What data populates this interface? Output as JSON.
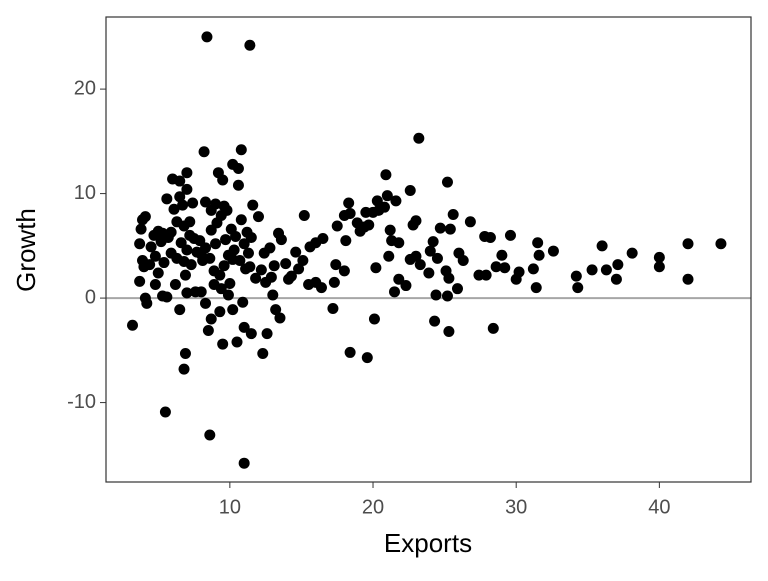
{
  "chart_data": {
    "type": "scatter",
    "x_label": "Exports",
    "y_label": "Growth",
    "xlim": [
      1.35,
      46.4
    ],
    "ylim": [
      -17.6,
      26.9
    ],
    "xticks": [
      10,
      20,
      30,
      40
    ],
    "yticks": [
      -10,
      0,
      10,
      20
    ],
    "reference_line": 0,
    "reference_color": "#a6a6a6",
    "color": "#000000",
    "x": [
      8.4,
      11.4,
      5.5,
      8.6,
      11.0,
      3.2,
      6.8,
      6.9,
      23.2,
      20.9,
      25.2,
      10.8,
      8.2,
      10.2,
      10.6,
      7.0,
      6.0,
      6.5,
      9.2,
      9.5,
      10.6,
      22.6,
      7.0,
      5.6,
      6.5,
      8.3,
      9.0,
      9.6,
      11.6,
      18.3,
      20.3,
      21.0,
      21.6,
      19.5,
      20.8,
      17.5,
      18.0,
      18.4,
      18.9,
      19.7,
      20.0,
      21.2,
      21.8,
      22.8,
      23.0,
      24.2,
      24.7,
      25.4,
      25.6,
      26.8,
      27.8,
      28.2,
      29.6,
      31.5,
      32.6,
      36.0,
      40.0,
      42.0,
      44.3,
      38.1,
      37.1,
      36.3,
      35.3,
      34.2,
      34.3,
      37.0,
      42.0,
      40.0,
      31.4,
      31.2,
      31.6,
      30.2,
      30.0,
      29.2,
      28.6,
      29.0,
      27.4,
      27.9,
      26.3,
      26.0,
      25.1,
      25.3,
      25.9,
      24.4,
      25.2,
      24.3,
      25.3,
      28.4,
      18.4,
      19.6,
      20.1,
      17.2,
      17.3,
      18.0,
      17.4,
      18.1,
      19.1,
      20.2,
      21.1,
      21.3,
      21.5,
      21.8,
      22.6,
      23.0,
      23.3,
      24.0,
      24.5,
      23.9,
      22.3,
      16.5,
      16.0,
      15.2,
      15.6,
      15.1,
      16.0,
      14.8,
      15.5,
      14.3,
      14.6,
      13.6,
      13.4,
      12.8,
      12.4,
      12.2,
      12.5,
      13.0,
      13.2,
      12.6,
      12.3,
      13.5,
      11.0,
      11.5,
      10.5,
      9.5,
      8.5,
      8.7,
      9.3,
      10.2,
      10.9,
      9.9,
      8.3,
      6.5,
      4.1,
      5.3,
      5.6,
      4.2,
      7.0,
      7.6,
      8.0,
      3.7,
      4.8,
      6.2,
      6.9,
      5.0,
      4.0,
      3.9,
      4.4,
      4.8,
      5.4,
      5.9,
      6.3,
      6.8,
      7.3,
      7.7,
      8.1,
      8.6,
      8.9,
      9.3,
      9.6,
      9.9,
      10.3,
      10.7,
      11.1,
      11.3,
      11.8,
      10.0,
      9.4,
      8.9,
      3.7,
      3.8,
      3.9,
      4.1,
      4.7,
      5.0,
      5.2,
      5.7,
      5.9,
      6.3,
      6.8,
      7.2,
      7.5,
      7.9,
      8.3,
      8.7,
      9.1,
      9.4,
      9.8,
      10.1,
      10.4,
      10.8,
      11.2,
      11.0,
      11.5,
      12.0,
      6.1,
      6.7,
      7.4,
      8.7,
      5.3,
      4.5,
      6.6,
      7.0,
      9.7,
      10.2,
      11.4,
      13.9,
      14.1,
      13.1,
      12.9,
      9.0,
      8.0,
      7.2,
      16.4,
      19.4,
      20.4
    ],
    "values": [
      25.0,
      24.2,
      -10.9,
      -13.1,
      -15.8,
      -2.6,
      -6.8,
      -5.3,
      15.3,
      11.8,
      11.1,
      14.2,
      14.0,
      12.8,
      12.4,
      12.0,
      11.4,
      11.2,
      12.0,
      11.3,
      10.8,
      10.3,
      10.4,
      9.5,
      9.7,
      9.2,
      9.0,
      8.8,
      8.9,
      9.1,
      9.3,
      9.8,
      9.3,
      8.2,
      8.7,
      6.9,
      7.9,
      8.1,
      7.2,
      7.0,
      8.2,
      6.5,
      5.3,
      7.0,
      7.4,
      5.4,
      6.7,
      6.6,
      8.0,
      7.3,
      5.9,
      5.8,
      6.0,
      5.3,
      4.5,
      5.0,
      3.9,
      5.2,
      5.2,
      4.3,
      3.2,
      2.7,
      2.7,
      2.1,
      1.0,
      1.8,
      1.8,
      3.0,
      1.0,
      2.8,
      4.1,
      2.5,
      1.8,
      2.9,
      3.0,
      4.1,
      2.2,
      2.2,
      3.6,
      4.3,
      2.6,
      1.9,
      0.9,
      0.3,
      0.2,
      -2.2,
      -3.2,
      -2.9,
      -5.2,
      -5.7,
      -2.0,
      -1.0,
      1.5,
      2.6,
      3.2,
      5.5,
      6.4,
      2.9,
      4.0,
      5.5,
      0.6,
      1.8,
      3.7,
      4.0,
      3.2,
      4.5,
      3.8,
      2.4,
      1.2,
      5.7,
      5.3,
      7.9,
      4.9,
      3.6,
      1.5,
      2.8,
      1.3,
      2.1,
      4.4,
      5.6,
      6.2,
      4.8,
      4.3,
      2.7,
      1.5,
      0.3,
      -1.1,
      -3.4,
      -5.3,
      -1.9,
      -2.8,
      -3.4,
      -4.2,
      -4.4,
      -3.1,
      -2.0,
      -1.3,
      -1.1,
      -0.4,
      0.3,
      -0.5,
      -1.1,
      0.0,
      0.2,
      0.1,
      -0.5,
      0.5,
      0.6,
      0.6,
      1.6,
      1.3,
      1.3,
      2.2,
      2.4,
      3.0,
      3.6,
      3.2,
      4.0,
      3.4,
      4.3,
      3.8,
      3.5,
      3.2,
      4.4,
      3.6,
      3.8,
      2.6,
      2.2,
      3.1,
      4.1,
      4.6,
      3.6,
      2.8,
      4.3,
      1.9,
      1.4,
      0.9,
      1.3,
      5.2,
      6.6,
      7.5,
      7.8,
      6.0,
      6.4,
      5.4,
      5.8,
      6.3,
      7.3,
      6.9,
      6.0,
      5.7,
      5.5,
      4.8,
      6.5,
      7.2,
      7.9,
      8.4,
      6.6,
      5.9,
      7.5,
      6.3,
      5.2,
      5.8,
      7.8,
      8.5,
      8.9,
      9.1,
      8.4,
      6.2,
      4.9,
      5.3,
      4.6,
      5.6,
      3.7,
      3.0,
      3.3,
      1.8,
      3.1,
      2.0,
      5.2,
      4.2,
      7.3,
      1.0,
      6.8,
      8.4
    ]
  }
}
